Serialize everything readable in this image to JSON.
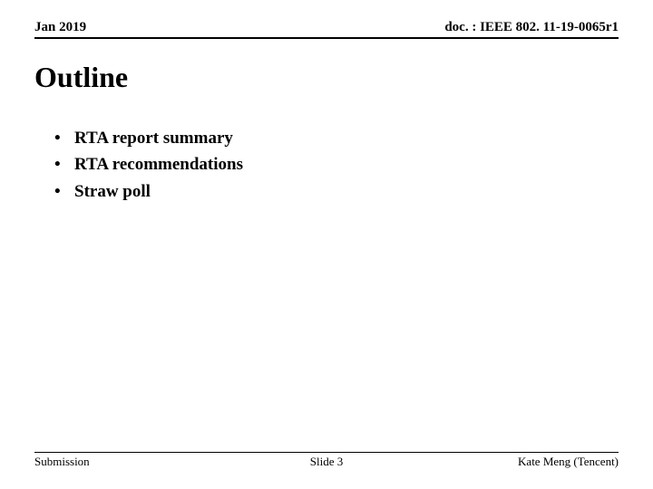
{
  "header": {
    "date": "Jan 2019",
    "docref": "doc. : IEEE 802. 11-19-0065r1"
  },
  "title": "Outline",
  "bullets": [
    "RTA report summary",
    "RTA recommendations",
    "Straw poll"
  ],
  "footer": {
    "left": "Submission",
    "center": "Slide 3",
    "right": "Kate Meng (Tencent)"
  },
  "style": {
    "background_color": "#ffffff",
    "text_color": "#000000",
    "font_family": "Times New Roman",
    "header_fontsize": 15,
    "title_fontsize": 32,
    "bullet_fontsize": 19,
    "footer_fontsize": 13,
    "rule_color": "#000000"
  }
}
